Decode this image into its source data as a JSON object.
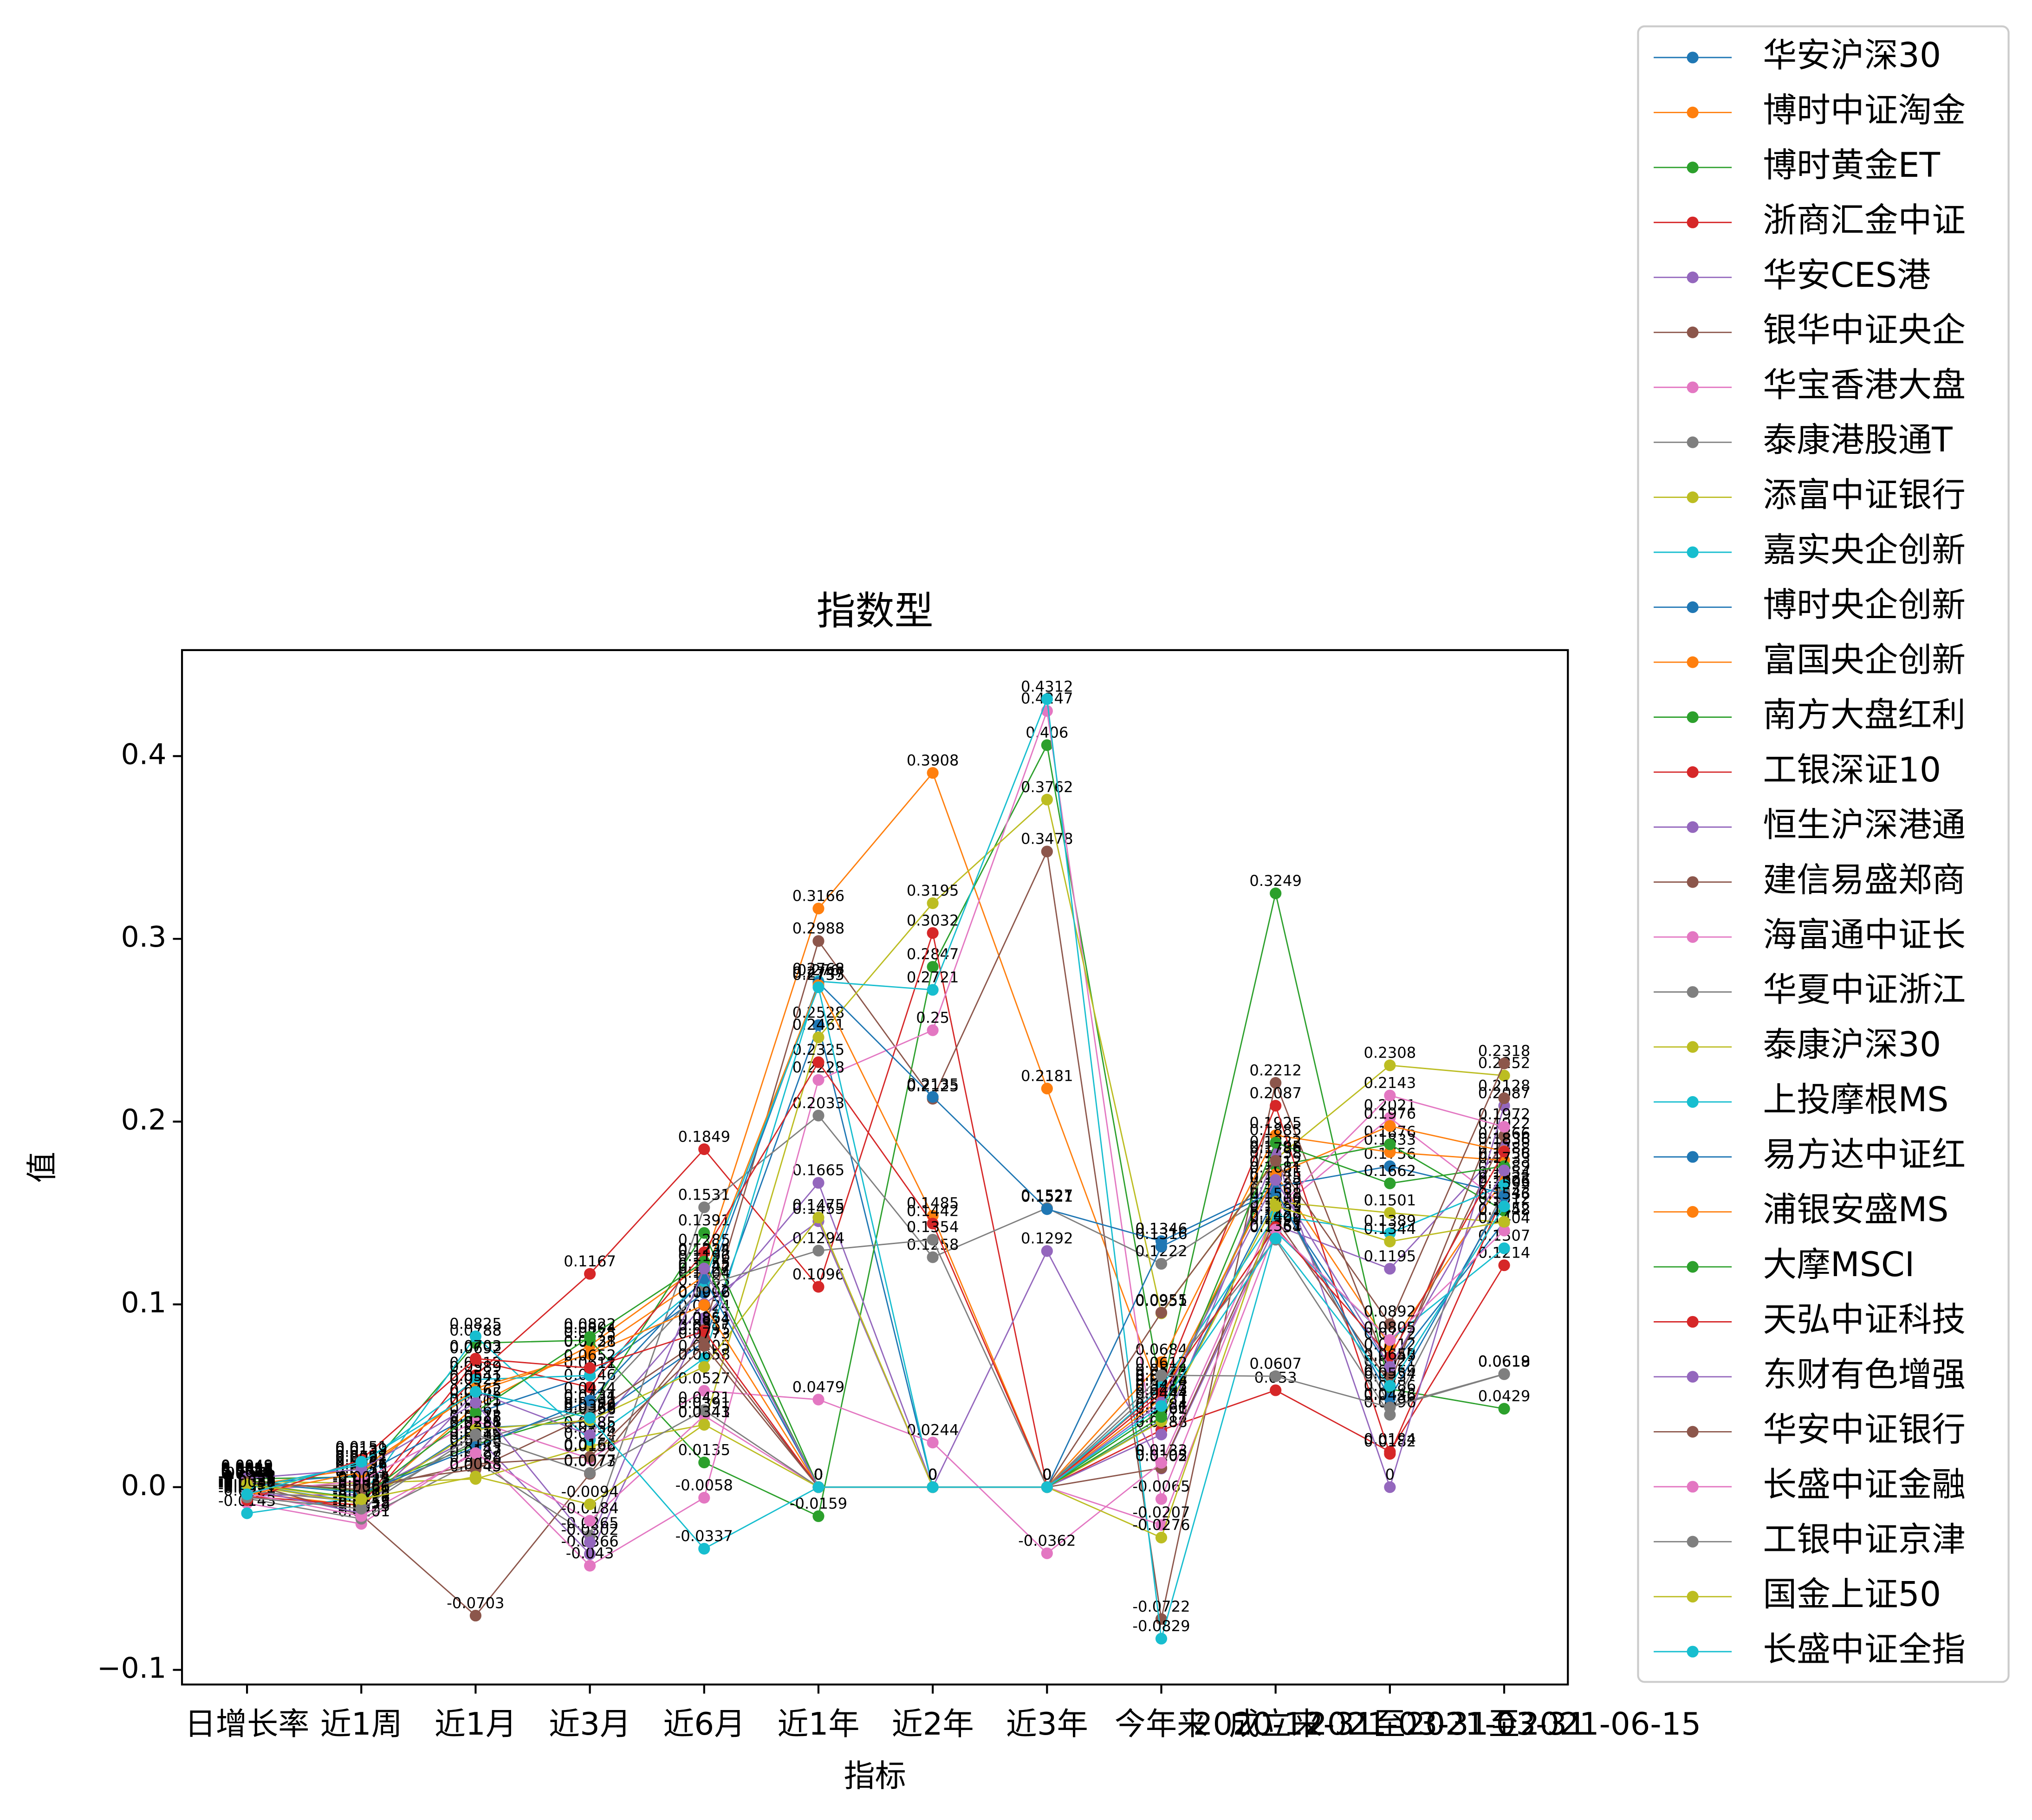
{
  "chart_data": {
    "type": "line",
    "title": "指数型",
    "xlabel": "指标",
    "ylabel": "值",
    "categories": [
      "日增长率",
      "近1周",
      "近1月",
      "近3月",
      "近6月",
      "近1年",
      "近2年",
      "近3年",
      "今年来",
      "成立来",
      "2020-12-31至2021-03-31",
      "2021-03-31至2021-06-15"
    ],
    "ylim": [
      -0.108,
      0.458
    ],
    "yticks": [
      {
        "value": -0.1,
        "label": "−0.1"
      },
      {
        "value": 0,
        "label": "0.0"
      },
      0.1,
      0.2,
      0.3,
      0.4
    ],
    "legend": "outside right",
    "series": [
      {
        "name": "华安沪深30",
        "color": "#1f77b4",
        "values": [
          0.0012,
          -0.0085,
          0.0322,
          0.0358,
          0.0795,
          0.2528,
          0,
          0,
          0.0366,
          0.1589,
          0.0649,
          0.1452
        ]
      },
      {
        "name": "博时中证淘金",
        "color": "#ff7f0e",
        "values": [
          -0.0031,
          -0.0102,
          0.0445,
          0.0775,
          0.1225,
          0.3166,
          0.3908,
          0.2181,
          0.0487,
          0.1712,
          0.0772,
          0.1689
        ]
      },
      {
        "name": "博时黄金ET",
        "color": "#2ca02c",
        "values": [
          0.0045,
          0.0056,
          0.0788,
          0.0804,
          0.0135,
          -0.0159,
          0.2847,
          0.406,
          0.0518,
          0.3249,
          0.0537,
          0.0429
        ]
      },
      {
        "name": "浙商汇金中证",
        "color": "#d62728",
        "values": [
          -0.0022,
          -0.0121,
          0.0612,
          0.1167,
          0.1849,
          0.1096,
          0.3032,
          0,
          0.0312,
          0.053,
          0.0194,
          0.1214
        ]
      },
      {
        "name": "华安CES港",
        "color": "#9467bd",
        "values": [
          -0.0045,
          -0.0042,
          0.0281,
          -0.0366,
          0.0924,
          0.1665,
          0,
          0.1292,
          0.0102,
          0.1433,
          0.1195,
          0.1866
        ]
      },
      {
        "name": "银华中证央企",
        "color": "#8c564b",
        "values": [
          0.0021,
          -0.0152,
          -0.0703,
          0.0073,
          0.0861,
          0.2988,
          0.2125,
          0.3478,
          -0.0722,
          0.2212,
          0.0621,
          0.1922
        ]
      },
      {
        "name": "华宝香港大盘",
        "color": "#e377c2",
        "values": [
          -0.0088,
          -0.0201,
          0.0199,
          -0.043,
          -0.0058,
          0.2228,
          0.25,
          0.4247,
          -0.0065,
          0.1505,
          0.2021,
          0.1543
        ]
      },
      {
        "name": "泰康港股通T",
        "color": "#7f7f7f",
        "values": [
          -0.0062,
          -0.0173,
          0.0143,
          -0.0265,
          0.1531,
          0.2033,
          0.1258,
          0.1527,
          0.1222,
          0.1625,
          0.0443,
          0.0619
        ]
      },
      {
        "name": "添富中证银行",
        "color": "#bcbd22",
        "values": [
          0.0032,
          0.0021,
          0.0045,
          0.0224,
          0.0341,
          0.2461,
          0.3195,
          0.3762,
          0.0951,
          0.1795,
          0.2308,
          0.2252
        ]
      },
      {
        "name": "嘉实央企创新",
        "color": "#17becf",
        "values": [
          -0.0143,
          -0.0054,
          0.0825,
          0.0258,
          0.0705,
          0.2768,
          0.2721,
          0.4312,
          -0.0829,
          0.1398,
          0.0805,
          0.1307
        ]
      },
      {
        "name": "博时央企创新",
        "color": "#1f77b4",
        "values": [
          0.0019,
          0.0065,
          0.0405,
          0.0612,
          0.1063,
          0.276,
          0.2135,
          0.1521,
          0.1346,
          0.1645,
          0.1756,
          0.1606
        ]
      },
      {
        "name": "富国央企创新",
        "color": "#ff7f0e",
        "values": [
          0.0008,
          0.0102,
          0.0522,
          0.0731,
          0.1155,
          0.2747,
          0.1485,
          0,
          0.0684,
          0.1925,
          0.1833,
          0.1788
        ]
      },
      {
        "name": "南方大盘红利",
        "color": "#2ca02c",
        "values": [
          0.0034,
          -0.0023,
          0.0233,
          0.0421,
          0.1391,
          0,
          0,
          0,
          0.0421,
          0.1758,
          0.1876,
          0.1512
        ]
      },
      {
        "name": "工银深证10",
        "color": "#d62728",
        "values": [
          -0.0051,
          -0.0098,
          0.0692,
          0.0546,
          0.1285,
          0.2325,
          0.1442,
          0,
          0.0539,
          0.2087,
          0.0182,
          0.1605
        ]
      },
      {
        "name": "恒生沪深港通",
        "color": "#9467bd",
        "values": [
          -0.0012,
          -0.0143,
          0.0522,
          0.0285,
          0.1002,
          0.1455,
          0,
          0,
          0.0288,
          0.1822,
          0,
          0.2087
        ]
      },
      {
        "name": "建信易盛郑商",
        "color": "#8c564b",
        "values": [
          0.0004,
          0.0011,
          0.0098,
          0.0392,
          0.0817,
          0,
          0,
          0,
          0.0105,
          0.1469,
          0.0569,
          0.2128
        ]
      },
      {
        "name": "海富通中证长",
        "color": "#e377c2",
        "values": [
          -0.0027,
          0.0035,
          0.0361,
          0.0156,
          0.0527,
          0.0479,
          0.0244,
          -0.0362,
          0.0133,
          0.1516,
          0.2143,
          0.1972
        ]
      },
      {
        "name": "华夏中证浙江",
        "color": "#7f7f7f",
        "values": [
          -0.0019,
          -0.0081,
          0.0254,
          0.0434,
          0.1104,
          0.1294,
          0.1354,
          0,
          0.0574,
          0.1354,
          0.0396,
          0.1622
        ]
      },
      {
        "name": "泰康沪深30",
        "color": "#bcbd22",
        "values": [
          0.001,
          -0.0089,
          0.0315,
          0.0366,
          0.0658,
          0.1475,
          0,
          0,
          0.0361,
          0.1561,
          0.1501,
          0.1448
        ]
      },
      {
        "name": "上投摩根MS",
        "color": "#17becf",
        "values": [
          -0.0008,
          0.0124,
          0.0589,
          0.0611,
          0.1127,
          0.2735,
          0,
          0,
          0.0547,
          0.1487,
          0.1389,
          0.1654
        ]
      },
      {
        "name": "易方达中证红",
        "color": "#1f77b4",
        "values": [
          0.0026,
          -0.0032,
          0.0219,
          0.0474,
          0.1142,
          0,
          0,
          0,
          0.1316,
          0.1625,
          0.0486,
          0.1593
        ]
      },
      {
        "name": "浦银安盛MS",
        "color": "#ff7f0e",
        "values": [
          -0.0041,
          0.0081,
          0.0541,
          0.0728,
          0.0996,
          0,
          0,
          0,
          0.0485,
          0.1712,
          0.1976,
          0.1838
        ]
      },
      {
        "name": "大摩MSCI",
        "color": "#2ca02c",
        "values": [
          0.0018,
          -0.0061,
          0.0411,
          0.0822,
          0.1234,
          0,
          0,
          0,
          0.0384,
          0.1885,
          0.1662,
          0.1756
        ]
      },
      {
        "name": "天弘中证科技",
        "color": "#d62728",
        "values": [
          -0.0071,
          0.0151,
          0.0703,
          0.0652,
          0.0854,
          0,
          0,
          0,
          0.0514,
          0.1422,
          0.0712,
          0.1836
        ]
      },
      {
        "name": "东财有色增强",
        "color": "#9467bd",
        "values": [
          0.0049,
          0.0097,
          0.0462,
          -0.0302,
          0.1196,
          0,
          0,
          0,
          0.0463,
          0.1681,
          0.0658,
          0.1733
        ]
      },
      {
        "name": "华安中证银行",
        "color": "#8c564b",
        "values": [
          0.0028,
          -0.0014,
          0.0127,
          0.0165,
          0.0773,
          0,
          0,
          0,
          0.0955,
          0.1786,
          0.0892,
          0.2318
        ]
      },
      {
        "name": "长盛中证金融",
        "color": "#e377c2",
        "values": [
          -0.0034,
          -0.0158,
          0.0186,
          -0.0184,
          0.0391,
          0,
          0,
          0,
          -0.0207,
          0.1409,
          0.0805,
          0.1404
        ]
      },
      {
        "name": "工银中证京津",
        "color": "#7f7f7f",
        "values": [
          -0.0056,
          -0.0118,
          0.0288,
          0.0077,
          0.0421,
          0,
          0,
          0,
          0.0612,
          0.0607,
          0.0436,
          0.0618
        ]
      },
      {
        "name": "国金上证50",
        "color": "#bcbd22",
        "values": [
          0.0015,
          -0.0066,
          0.0058,
          -0.0094,
          0.0343,
          0,
          0,
          0,
          -0.0276,
          0.1538,
          0.1344,
          0.1452
        ]
      },
      {
        "name": "长盛中证全指",
        "color": "#17becf",
        "values": [
          -0.0039,
          0.0139,
          0.0522,
          0.0379,
          -0.0337,
          0,
          0,
          0,
          0.0444,
          0.1361,
          0.0554,
          0.1536
        ]
      }
    ]
  }
}
